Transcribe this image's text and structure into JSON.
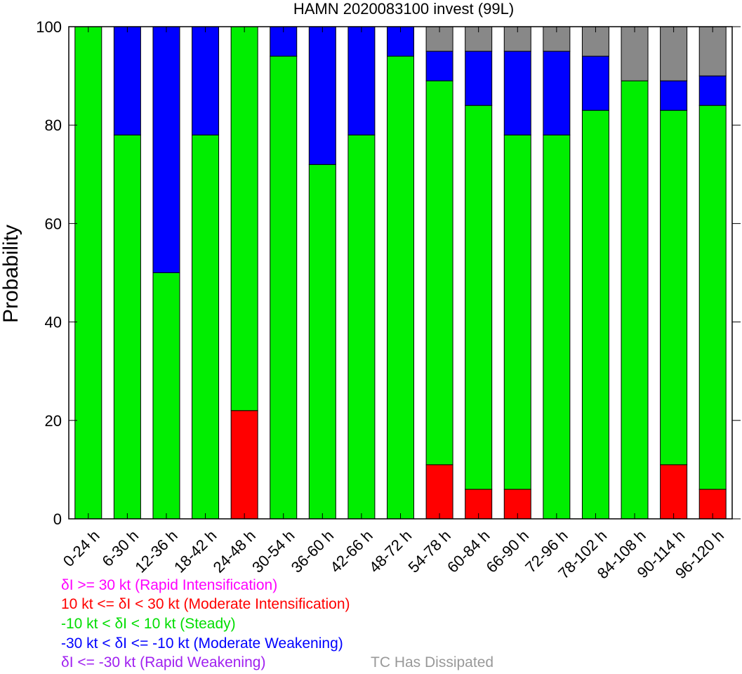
{
  "chart_data": {
    "type": "bar",
    "stacked": true,
    "title": "HAMN 2020083100 invest (99L)",
    "xlabel": "",
    "ylabel": "Probability",
    "ylim": [
      0,
      100
    ],
    "yticks": [
      0,
      20,
      40,
      60,
      80,
      100
    ],
    "grid": false,
    "legend_position": "bottom-left",
    "categories": [
      "0-24 h",
      "6-30 h",
      "12-36 h",
      "18-42 h",
      "24-48 h",
      "30-54 h",
      "36-60 h",
      "42-66 h",
      "48-72 h",
      "54-78 h",
      "60-84 h",
      "66-90 h",
      "72-96 h",
      "78-102 h",
      "84-108 h",
      "90-114 h",
      "96-120 h"
    ],
    "series": [
      {
        "name": "δI >= 30 kt (Rapid Intensification)",
        "color": "#ff00ff",
        "values": [
          0,
          0,
          0,
          0,
          0,
          0,
          0,
          0,
          0,
          0,
          0,
          0,
          0,
          0,
          0,
          0,
          0
        ]
      },
      {
        "name": "10 kt <= δI < 30 kt (Moderate Intensification)",
        "color": "#ff0000",
        "values": [
          0,
          0,
          0,
          0,
          22,
          0,
          0,
          0,
          0,
          11,
          6,
          6,
          0,
          0,
          0,
          11,
          6
        ]
      },
      {
        "name": "-10 kt < δI < 10 kt (Steady)",
        "color": "#00ee00",
        "values": [
          100,
          78,
          50,
          78,
          78,
          94,
          72,
          78,
          94,
          78,
          78,
          72,
          78,
          83,
          89,
          72,
          78
        ]
      },
      {
        "name": "-30 kt < δI <= -10 kt (Moderate Weakening)",
        "color": "#0000ff",
        "values": [
          0,
          22,
          50,
          22,
          0,
          6,
          28,
          22,
          6,
          6,
          11,
          17,
          17,
          11,
          0,
          6,
          6
        ]
      },
      {
        "name": "δI <= -30 kt (Rapid Weakening)",
        "color": "#a020f0",
        "values": [
          0,
          0,
          0,
          0,
          0,
          0,
          0,
          0,
          0,
          0,
          0,
          0,
          0,
          0,
          0,
          0,
          0
        ]
      },
      {
        "name": "TC Has Dissipated",
        "color": "#888888",
        "values": [
          0,
          0,
          0,
          0,
          0,
          0,
          0,
          0,
          0,
          5,
          5,
          5,
          5,
          6,
          11,
          11,
          10
        ]
      }
    ]
  },
  "legend": {
    "rapid_intensification": "δI >= 30 kt (Rapid Intensification)",
    "moderate_intensification": "10 kt <= δI < 30 kt (Moderate Intensification)",
    "steady": "-10 kt < δI < 10 kt (Steady)",
    "moderate_weakening": "-30 kt < δI <= -10 kt (Moderate Weakening)",
    "rapid_weakening": "δI <= -30 kt (Rapid Weakening)",
    "dissipated": "TC Has Dissipated"
  }
}
